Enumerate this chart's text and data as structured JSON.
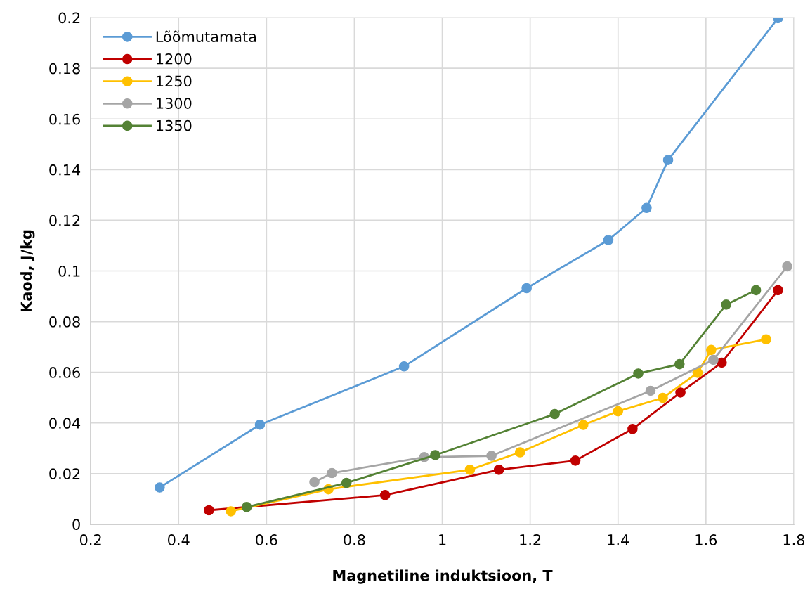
{
  "chart_data": {
    "type": "line",
    "xlabel": "Magnetiline induktsioon, T",
    "ylabel": "Kaod, J/kg",
    "xlim": [
      0.2,
      1.8
    ],
    "xticks": [
      0.2,
      0.4,
      0.6,
      0.8,
      1,
      1.2,
      1.4,
      1.6,
      1.8
    ],
    "ylim": [
      0,
      0.2
    ],
    "yticks": [
      0,
      0.02,
      0.04,
      0.06,
      0.08,
      0.1,
      0.12,
      0.14,
      0.16,
      0.18,
      0.2
    ],
    "grid": true,
    "legend": "top left",
    "marker": "circle",
    "line_style": "solid",
    "series": [
      {
        "name": "Lõõmutamata",
        "color": "#5b9bd5",
        "x": [
          0.357,
          0.585,
          0.913,
          1.192,
          1.378,
          1.465,
          1.514,
          1.764
        ],
        "values": [
          0.0145,
          0.0393,
          0.0623,
          0.0932,
          0.1122,
          0.1249,
          0.1438,
          0.1998
        ]
      },
      {
        "name": "1200",
        "color": "#c00000",
        "x": [
          0.469,
          0.87,
          1.129,
          1.303,
          1.433,
          1.542,
          1.636,
          1.764
        ],
        "values": [
          0.0055,
          0.0115,
          0.0215,
          0.0251,
          0.0376,
          0.052,
          0.0638,
          0.0924
        ]
      },
      {
        "name": "1250",
        "color": "#ffc000",
        "x": [
          0.519,
          0.741,
          1.063,
          1.177,
          1.321,
          1.4,
          1.502,
          1.581,
          1.612,
          1.737
        ],
        "values": [
          0.0051,
          0.0138,
          0.0215,
          0.0284,
          0.0392,
          0.0446,
          0.0499,
          0.0598,
          0.0688,
          0.073
        ]
      },
      {
        "name": "1300",
        "color": "#a5a5a5",
        "x": [
          0.709,
          0.749,
          0.959,
          1.112,
          1.474,
          1.617,
          1.785
        ],
        "values": [
          0.0166,
          0.0202,
          0.0265,
          0.027,
          0.0527,
          0.0649,
          0.1018
        ]
      },
      {
        "name": "1350",
        "color": "#548235",
        "x": [
          0.555,
          0.782,
          0.984,
          1.256,
          1.446,
          1.54,
          1.646,
          1.714
        ],
        "values": [
          0.0068,
          0.0163,
          0.0273,
          0.0435,
          0.0595,
          0.0632,
          0.0867,
          0.0924
        ]
      }
    ]
  }
}
